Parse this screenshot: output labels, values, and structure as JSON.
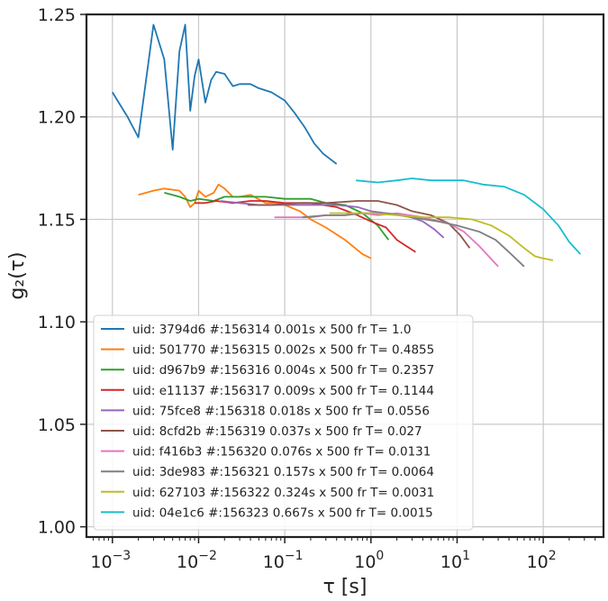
{
  "chart_data": {
    "type": "line",
    "title": "",
    "xlabel": "τ [s]",
    "ylabel": "g₂(τ)",
    "xscale": "log",
    "xlim": [
      0.0005,
      500
    ],
    "ylim": [
      0.995,
      1.25
    ],
    "grid": true,
    "legend_placement": "lower-left",
    "x_ticks": [
      {
        "value": 0.001,
        "base": "10",
        "exp": "−3"
      },
      {
        "value": 0.01,
        "base": "10",
        "exp": "−2"
      },
      {
        "value": 0.1,
        "base": "10",
        "exp": "−1"
      },
      {
        "value": 1,
        "base": "10",
        "exp": "0"
      },
      {
        "value": 10,
        "base": "10",
        "exp": "1"
      },
      {
        "value": 100,
        "base": "10",
        "exp": "2"
      }
    ],
    "y_ticks": [
      {
        "value": 1.0,
        "label": "1.00"
      },
      {
        "value": 1.05,
        "label": "1.05"
      },
      {
        "value": 1.1,
        "label": "1.10"
      },
      {
        "value": 1.15,
        "label": "1.15"
      },
      {
        "value": 1.2,
        "label": "1.20"
      },
      {
        "value": 1.25,
        "label": "1.25"
      }
    ],
    "series": [
      {
        "name": "uid: 3794d6 #:156314  0.001s x 500 fr  T= 1.0",
        "color": "#1f77b4",
        "points": [
          [
            0.001,
            1.212
          ],
          [
            0.0015,
            1.2
          ],
          [
            0.002,
            1.19
          ],
          [
            0.003,
            1.245
          ],
          [
            0.004,
            1.228
          ],
          [
            0.005,
            1.184
          ],
          [
            0.006,
            1.232
          ],
          [
            0.007,
            1.245
          ],
          [
            0.008,
            1.203
          ],
          [
            0.009,
            1.22
          ],
          [
            0.01,
            1.228
          ],
          [
            0.012,
            1.207
          ],
          [
            0.014,
            1.218
          ],
          [
            0.016,
            1.222
          ],
          [
            0.02,
            1.221
          ],
          [
            0.025,
            1.215
          ],
          [
            0.03,
            1.216
          ],
          [
            0.04,
            1.216
          ],
          [
            0.05,
            1.214
          ],
          [
            0.07,
            1.212
          ],
          [
            0.1,
            1.208
          ],
          [
            0.13,
            1.202
          ],
          [
            0.17,
            1.195
          ],
          [
            0.22,
            1.187
          ],
          [
            0.28,
            1.182
          ],
          [
            0.4,
            1.177
          ]
        ]
      },
      {
        "name": "uid: 501770 #:156315  0.002s x 500 fr  T= 0.4855",
        "color": "#ff7f0e",
        "points": [
          [
            0.002,
            1.162
          ],
          [
            0.003,
            1.164
          ],
          [
            0.004,
            1.165
          ],
          [
            0.006,
            1.164
          ],
          [
            0.007,
            1.161
          ],
          [
            0.008,
            1.156
          ],
          [
            0.009,
            1.158
          ],
          [
            0.01,
            1.164
          ],
          [
            0.012,
            1.161
          ],
          [
            0.015,
            1.163
          ],
          [
            0.017,
            1.167
          ],
          [
            0.02,
            1.165
          ],
          [
            0.025,
            1.161
          ],
          [
            0.03,
            1.161
          ],
          [
            0.04,
            1.162
          ],
          [
            0.06,
            1.158
          ],
          [
            0.08,
            1.158
          ],
          [
            0.1,
            1.157
          ],
          [
            0.15,
            1.154
          ],
          [
            0.2,
            1.15
          ],
          [
            0.3,
            1.146
          ],
          [
            0.5,
            1.14
          ],
          [
            0.8,
            1.133
          ],
          [
            1.0,
            1.131
          ]
        ]
      },
      {
        "name": "uid: d967b9 #:156316  0.004s x 500 fr  T= 0.2357",
        "color": "#2ca02c",
        "points": [
          [
            0.004,
            1.163
          ],
          [
            0.006,
            1.161
          ],
          [
            0.008,
            1.159
          ],
          [
            0.01,
            1.16
          ],
          [
            0.015,
            1.159
          ],
          [
            0.02,
            1.161
          ],
          [
            0.04,
            1.161
          ],
          [
            0.06,
            1.161
          ],
          [
            0.1,
            1.16
          ],
          [
            0.2,
            1.16
          ],
          [
            0.3,
            1.158
          ],
          [
            0.5,
            1.157
          ],
          [
            0.8,
            1.153
          ],
          [
            1.2,
            1.147
          ],
          [
            1.6,
            1.14
          ]
        ]
      },
      {
        "name": "uid: e11137 #:156317  0.009s x 500 fr  T= 0.1144",
        "color": "#d62728",
        "points": [
          [
            0.009,
            1.158
          ],
          [
            0.012,
            1.158
          ],
          [
            0.016,
            1.159
          ],
          [
            0.025,
            1.158
          ],
          [
            0.04,
            1.159
          ],
          [
            0.06,
            1.159
          ],
          [
            0.1,
            1.158
          ],
          [
            0.2,
            1.158
          ],
          [
            0.4,
            1.156
          ],
          [
            0.7,
            1.152
          ],
          [
            1.0,
            1.149
          ],
          [
            1.5,
            1.146
          ],
          [
            2.0,
            1.14
          ],
          [
            3.3,
            1.134
          ]
        ]
      },
      {
        "name": "uid: 75fce8 #:156318  0.018s x 500 fr  T= 0.0556",
        "color": "#9467bd",
        "points": [
          [
            0.018,
            1.159
          ],
          [
            0.03,
            1.158
          ],
          [
            0.05,
            1.157
          ],
          [
            0.1,
            1.157
          ],
          [
            0.2,
            1.157
          ],
          [
            0.4,
            1.157
          ],
          [
            0.7,
            1.156
          ],
          [
            1.0,
            1.154
          ],
          [
            1.5,
            1.153
          ],
          [
            2.5,
            1.152
          ],
          [
            4.0,
            1.149
          ],
          [
            5.5,
            1.145
          ],
          [
            7.0,
            1.141
          ]
        ]
      },
      {
        "name": "uid: 8cfd2b #:156319  0.037s x 500 fr  T= 0.027",
        "color": "#8c564b",
        "points": [
          [
            0.037,
            1.157
          ],
          [
            0.07,
            1.157
          ],
          [
            0.15,
            1.158
          ],
          [
            0.3,
            1.158
          ],
          [
            0.7,
            1.159
          ],
          [
            1.2,
            1.159
          ],
          [
            2.0,
            1.157
          ],
          [
            3.0,
            1.154
          ],
          [
            5.0,
            1.152
          ],
          [
            8.0,
            1.148
          ],
          [
            11.0,
            1.142
          ],
          [
            14.0,
            1.136
          ]
        ]
      },
      {
        "name": "uid: f416b3 #:156320  0.076s x 500 fr  T= 0.0131",
        "color": "#e377c2",
        "points": [
          [
            0.076,
            1.151
          ],
          [
            0.12,
            1.151
          ],
          [
            0.2,
            1.151
          ],
          [
            0.3,
            1.152
          ],
          [
            0.5,
            1.152
          ],
          [
            0.8,
            1.153
          ],
          [
            1.2,
            1.152
          ],
          [
            2.0,
            1.153
          ],
          [
            4.0,
            1.151
          ],
          [
            8.0,
            1.148
          ],
          [
            12.0,
            1.144
          ],
          [
            18.0,
            1.137
          ],
          [
            30.0,
            1.127
          ]
        ]
      },
      {
        "name": "uid: 3de983 #:156321  0.157s x 500 fr  T= 0.0064",
        "color": "#7f7f7f",
        "points": [
          [
            0.16,
            1.151
          ],
          [
            0.3,
            1.152
          ],
          [
            0.5,
            1.152
          ],
          [
            0.8,
            1.153
          ],
          [
            1.5,
            1.153
          ],
          [
            3.0,
            1.151
          ],
          [
            6.0,
            1.149
          ],
          [
            10.0,
            1.147
          ],
          [
            18.0,
            1.144
          ],
          [
            28.0,
            1.14
          ],
          [
            40.0,
            1.134
          ],
          [
            60.0,
            1.127
          ]
        ]
      },
      {
        "name": "uid: 627103 #:156322  0.324s x 500 fr  T= 0.0031",
        "color": "#bcbd22",
        "points": [
          [
            0.33,
            1.153
          ],
          [
            0.6,
            1.153
          ],
          [
            1.0,
            1.153
          ],
          [
            2.0,
            1.152
          ],
          [
            4.0,
            1.151
          ],
          [
            8.0,
            1.151
          ],
          [
            15.0,
            1.15
          ],
          [
            25.0,
            1.147
          ],
          [
            40.0,
            1.142
          ],
          [
            60.0,
            1.136
          ],
          [
            80.0,
            1.132
          ],
          [
            100.0,
            1.131
          ],
          [
            130.0,
            1.13
          ]
        ]
      },
      {
        "name": "uid: 04e1c6 #:156323  0.667s x 500 fr  T= 0.0015",
        "color": "#17becf",
        "points": [
          [
            0.67,
            1.169
          ],
          [
            1.2,
            1.168
          ],
          [
            2.0,
            1.169
          ],
          [
            3.0,
            1.17
          ],
          [
            5.0,
            1.169
          ],
          [
            8.0,
            1.169
          ],
          [
            12.0,
            1.169
          ],
          [
            20.0,
            1.167
          ],
          [
            35.0,
            1.166
          ],
          [
            60.0,
            1.162
          ],
          [
            100.0,
            1.155
          ],
          [
            150.0,
            1.147
          ],
          [
            200.0,
            1.139
          ],
          [
            270.0,
            1.133
          ]
        ]
      }
    ]
  }
}
